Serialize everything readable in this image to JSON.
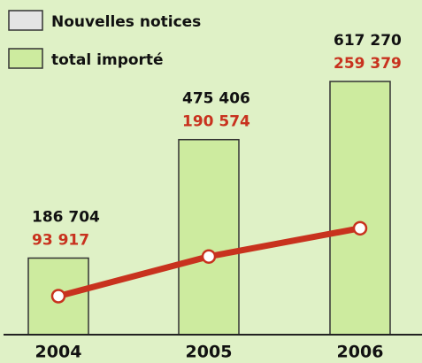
{
  "chart_data": {
    "type": "bar_line",
    "categories": [
      "2004",
      "2005",
      "2006"
    ],
    "series": [
      {
        "name": "Nouvelles notices",
        "type": "line",
        "color": "#c8321e",
        "legend_color": "#e4e4e4",
        "values": [
          93917,
          190574,
          259379
        ],
        "value_labels": [
          "93 917",
          "190 574",
          "259 379"
        ]
      },
      {
        "name": "total importé",
        "type": "bar",
        "color": "#cdeb9f",
        "legend_color": "#cdeb9f",
        "values": [
          186704,
          475406,
          617270
        ],
        "value_labels": [
          "186 704",
          "475 406",
          "617 270"
        ]
      }
    ],
    "legend": "top-left"
  }
}
